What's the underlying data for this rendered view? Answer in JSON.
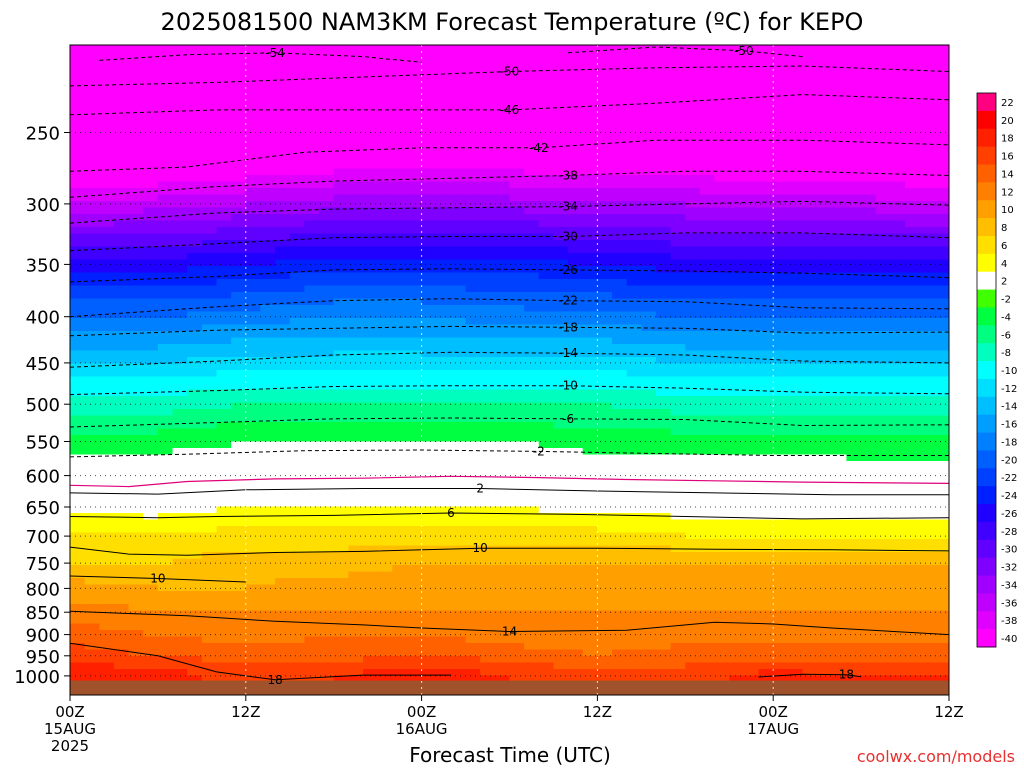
{
  "chart_data": {
    "type": "heatmap",
    "title": "2025081500 NAM3KM Forecast Temperature (ºC) for KEPO",
    "xlabel": "Forecast Time (UTC)",
    "ylabel": "",
    "credit": "coolwx.com/models",
    "x_ticks": [
      {
        "hour": 0,
        "lines": [
          "00Z",
          "15AUG",
          "2025"
        ]
      },
      {
        "hour": 12,
        "lines": [
          "12Z"
        ]
      },
      {
        "hour": 24,
        "lines": [
          "00Z",
          "16AUG"
        ]
      },
      {
        "hour": 36,
        "lines": [
          "12Z"
        ]
      },
      {
        "hour": 48,
        "lines": [
          "00Z",
          "17AUG"
        ]
      },
      {
        "hour": 60,
        "lines": [
          "12Z"
        ]
      }
    ],
    "xlim": [
      0,
      60
    ],
    "ylim_hpa": [
      1050,
      200
    ],
    "y_ticks": [
      250,
      300,
      350,
      400,
      450,
      500,
      550,
      600,
      650,
      700,
      750,
      800,
      850,
      900,
      950,
      1000
    ],
    "levels": [
      1000,
      950,
      900,
      850,
      800,
      750,
      700,
      650,
      600,
      550,
      500,
      450,
      400,
      350,
      300,
      250,
      200
    ],
    "hours": [
      0,
      6,
      12,
      18,
      24,
      30,
      36,
      42,
      48,
      54,
      60
    ],
    "temperature_c": [
      [
        20,
        19,
        17,
        18,
        20,
        18,
        17,
        17,
        19,
        18,
        18
      ],
      [
        17,
        16,
        15,
        15,
        16,
        15,
        14,
        15,
        15,
        15,
        15
      ],
      [
        15,
        14,
        13,
        14,
        14,
        13,
        13,
        13,
        13,
        13,
        13
      ],
      [
        13,
        12,
        12,
        12,
        12,
        12,
        12,
        12,
        12,
        12,
        12
      ],
      [
        11,
        10,
        10,
        11,
        11,
        11,
        11,
        11,
        11,
        11,
        11
      ],
      [
        8,
        8,
        9,
        9,
        10,
        10,
        10,
        10,
        10,
        10,
        10
      ],
      [
        7,
        6,
        7,
        7,
        7,
        7,
        7,
        6,
        6,
        6,
        6
      ],
      [
        3,
        3,
        4,
        4,
        4,
        4,
        3,
        3,
        3,
        2,
        2
      ],
      [
        0,
        0,
        0,
        1,
        1,
        1,
        0,
        0,
        0,
        -1,
        -1
      ],
      [
        -3,
        -3,
        -2,
        -2,
        -2,
        -2,
        -3,
        -3,
        -3,
        -3,
        -3
      ],
      [
        -7,
        -7,
        -6,
        -6,
        -6,
        -6,
        -6,
        -7,
        -7,
        -7,
        -7
      ],
      [
        -12,
        -12,
        -11,
        -11,
        -11,
        -11,
        -11,
        -12,
        -12,
        -12,
        -12
      ],
      [
        -18,
        -18,
        -17,
        -16,
        -16,
        -17,
        -17,
        -18,
        -18,
        -18,
        -18
      ],
      [
        -25,
        -25,
        -24,
        -23,
        -23,
        -23,
        -24,
        -25,
        -25,
        -25,
        -25
      ],
      [
        -36,
        -35,
        -34,
        -33,
        -33,
        -33,
        -34,
        -34,
        -35,
        -35,
        -36
      ],
      [
        -46,
        -46,
        -45,
        -44,
        -44,
        -44,
        -44,
        -44,
        -45,
        -45,
        -45
      ],
      [
        -55,
        -55,
        -54,
        -53,
        -53,
        -53,
        -53,
        -52,
        -53,
        -53,
        -54
      ]
    ],
    "contours": [
      {
        "label": "-54",
        "points": [
          [
            2,
            208
          ],
          [
            8,
            205
          ],
          [
            14,
            204
          ],
          [
            20,
            206
          ],
          [
            24,
            209
          ]
        ]
      },
      {
        "label": "-50",
        "points": [
          [
            0,
            222
          ],
          [
            10,
            220
          ],
          [
            20,
            217
          ],
          [
            30,
            214
          ],
          [
            40,
            212
          ],
          [
            50,
            211
          ],
          [
            60,
            214
          ]
        ]
      },
      {
        "label": "-50",
        "points": [
          [
            34,
            204
          ],
          [
            40,
            201
          ],
          [
            46,
            203
          ],
          [
            50,
            206
          ]
        ]
      },
      {
        "label": "-46",
        "points": [
          [
            0,
            239
          ],
          [
            10,
            236
          ],
          [
            20,
            236
          ],
          [
            30,
            236
          ],
          [
            40,
            232
          ],
          [
            50,
            227
          ],
          [
            60,
            230
          ]
        ]
      },
      {
        "label": "-42",
        "points": [
          [
            0,
            276
          ],
          [
            8,
            273
          ],
          [
            16,
            263
          ],
          [
            24,
            260
          ],
          [
            32,
            260
          ],
          [
            40,
            255
          ],
          [
            50,
            255
          ],
          [
            60,
            258
          ]
        ]
      },
      {
        "label": "-38",
        "points": [
          [
            0,
            295
          ],
          [
            10,
            287
          ],
          [
            18,
            283
          ],
          [
            26,
            281
          ],
          [
            34,
            279
          ],
          [
            42,
            276
          ],
          [
            50,
            276
          ],
          [
            60,
            279
          ]
        ]
      },
      {
        "label": "-34",
        "points": [
          [
            0,
            315
          ],
          [
            10,
            307
          ],
          [
            18,
            304
          ],
          [
            26,
            303
          ],
          [
            34,
            302
          ],
          [
            42,
            300
          ],
          [
            50,
            298
          ],
          [
            60,
            301
          ]
        ]
      },
      {
        "label": "-30",
        "points": [
          [
            0,
            338
          ],
          [
            10,
            332
          ],
          [
            18,
            327
          ],
          [
            26,
            326
          ],
          [
            34,
            326
          ],
          [
            42,
            323
          ],
          [
            50,
            323
          ],
          [
            60,
            327
          ]
        ]
      },
      {
        "label": "-26",
        "points": [
          [
            0,
            366
          ],
          [
            10,
            361
          ],
          [
            18,
            355
          ],
          [
            26,
            354
          ],
          [
            34,
            355
          ],
          [
            42,
            356
          ],
          [
            50,
            358
          ],
          [
            60,
            362
          ]
        ]
      },
      {
        "label": "-22",
        "points": [
          [
            0,
            400
          ],
          [
            10,
            390
          ],
          [
            18,
            384
          ],
          [
            26,
            382
          ],
          [
            34,
            384
          ],
          [
            42,
            385
          ],
          [
            50,
            391
          ],
          [
            60,
            392
          ]
        ]
      },
      {
        "label": "-18",
        "points": [
          [
            0,
            420
          ],
          [
            10,
            414
          ],
          [
            18,
            412
          ],
          [
            26,
            410
          ],
          [
            34,
            411
          ],
          [
            42,
            412
          ],
          [
            50,
            417
          ],
          [
            60,
            416
          ]
        ]
      },
      {
        "label": "-14",
        "points": [
          [
            0,
            455
          ],
          [
            10,
            448
          ],
          [
            18,
            441
          ],
          [
            26,
            438
          ],
          [
            34,
            439
          ],
          [
            42,
            441
          ],
          [
            50,
            448
          ],
          [
            60,
            450
          ]
        ]
      },
      {
        "label": "-10",
        "points": [
          [
            0,
            488
          ],
          [
            10,
            483
          ],
          [
            18,
            478
          ],
          [
            26,
            477
          ],
          [
            34,
            477
          ],
          [
            42,
            480
          ],
          [
            50,
            485
          ],
          [
            60,
            487
          ]
        ]
      },
      {
        "label": "-6",
        "points": [
          [
            0,
            530
          ],
          [
            10,
            524
          ],
          [
            18,
            519
          ],
          [
            26,
            518
          ],
          [
            34,
            519
          ],
          [
            42,
            520
          ],
          [
            50,
            528
          ],
          [
            60,
            527
          ]
        ]
      },
      {
        "label": "-2",
        "points": [
          [
            0,
            572
          ],
          [
            8,
            568
          ],
          [
            16,
            563
          ],
          [
            24,
            562
          ],
          [
            32,
            564
          ],
          [
            40,
            567
          ],
          [
            48,
            570
          ],
          [
            60,
            570
          ]
        ]
      },
      {
        "label": "2",
        "points": [
          [
            0,
            627
          ],
          [
            6,
            629
          ],
          [
            12,
            622
          ],
          [
            20,
            620
          ],
          [
            28,
            620
          ],
          [
            36,
            624
          ],
          [
            44,
            627
          ],
          [
            52,
            630
          ],
          [
            60,
            630
          ]
        ]
      },
      {
        "label": "6",
        "points": [
          [
            0,
            666
          ],
          [
            6,
            668
          ],
          [
            10,
            666
          ],
          [
            18,
            664
          ],
          [
            26,
            660
          ],
          [
            34,
            662
          ],
          [
            42,
            666
          ],
          [
            50,
            670
          ],
          [
            60,
            668
          ]
        ]
      },
      {
        "label": "10",
        "points": [
          [
            0,
            720
          ],
          [
            4,
            733
          ],
          [
            8,
            735
          ],
          [
            14,
            730
          ],
          [
            20,
            728
          ],
          [
            28,
            722
          ],
          [
            36,
            722
          ],
          [
            44,
            724
          ],
          [
            52,
            725
          ],
          [
            60,
            727
          ]
        ]
      },
      {
        "label": "10",
        "points": [
          [
            0,
            775
          ],
          [
            6,
            780
          ],
          [
            12,
            787
          ]
        ]
      },
      {
        "label": "14",
        "points": [
          [
            0,
            848
          ],
          [
            8,
            858
          ],
          [
            14,
            870
          ],
          [
            20,
            878
          ],
          [
            24,
            885
          ],
          [
            30,
            893
          ],
          [
            38,
            890
          ],
          [
            44,
            872
          ],
          [
            48,
            876
          ],
          [
            52,
            885
          ],
          [
            60,
            900
          ]
        ]
      },
      {
        "label": "18",
        "points": [
          [
            0,
            920
          ],
          [
            6,
            950
          ],
          [
            10,
            990
          ],
          [
            14,
            1010
          ],
          [
            20,
            998
          ],
          [
            26,
            998
          ]
        ]
      },
      {
        "label": "18",
        "points": [
          [
            47,
            1003
          ],
          [
            50,
            996
          ],
          [
            53,
            997
          ],
          [
            54,
            1002
          ]
        ]
      }
    ],
    "legend_values": [
      22,
      20,
      18,
      16,
      14,
      12,
      10,
      8,
      6,
      4,
      2,
      -2,
      -4,
      -6,
      -8,
      -10,
      -12,
      -14,
      -16,
      -18,
      -20,
      -22,
      -24,
      -26,
      -28,
      -30,
      -32,
      -34,
      -36,
      -38,
      -40
    ],
    "legend_colors": [
      "#ff0080",
      "#ff0000",
      "#ff2000",
      "#ff4000",
      "#ff6000",
      "#ff8000",
      "#ff9f00",
      "#ffbf00",
      "#ffdf00",
      "#ffff00",
      "#ffffff",
      "#40ff00",
      "#00ff40",
      "#00ff80",
      "#00ffbf",
      "#00ffff",
      "#00dfff",
      "#00bfff",
      "#009fff",
      "#0080ff",
      "#0060ff",
      "#0040ff",
      "#0020ff",
      "#2000ff",
      "#4000ff",
      "#6000ff",
      "#8000ff",
      "#9f00ff",
      "#bf00ff",
      "#df00ff",
      "#ff00ff"
    ],
    "colors": {
      "ground": "#a0522d",
      "freezing_line": "#e0007a",
      "credit": "#e83030"
    }
  }
}
